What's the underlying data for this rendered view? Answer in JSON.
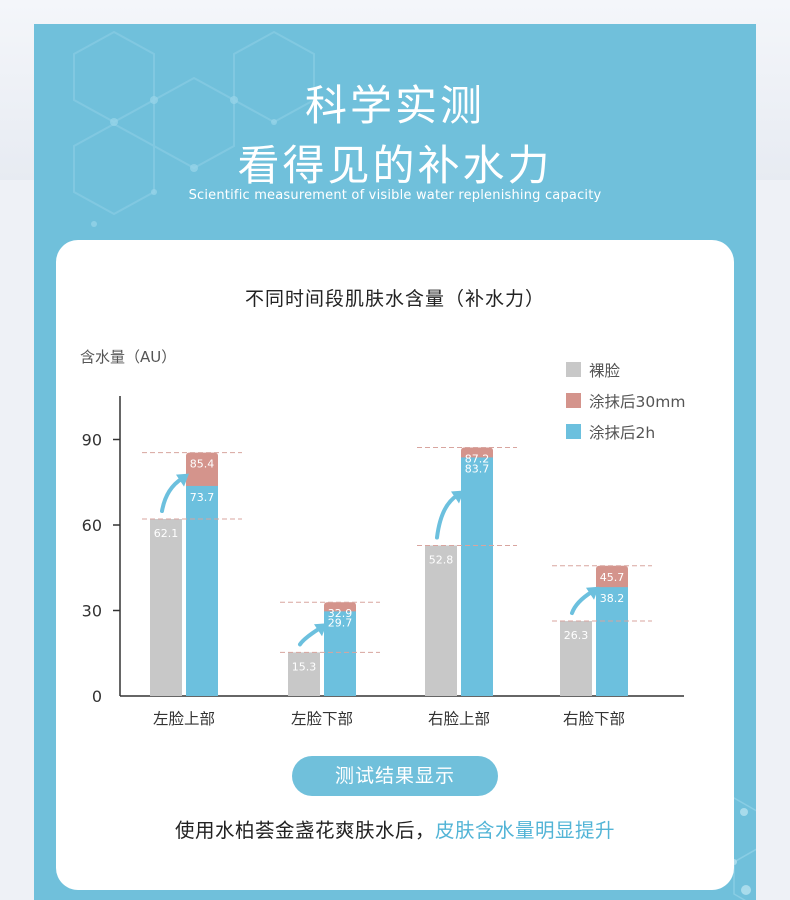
{
  "header": {
    "title_line1": "科学实测",
    "title_line2": "看得见的补水力",
    "subtitle": "Scientific measurement of visible water replenishing capacity"
  },
  "card": {
    "title": "不同时间段肌肤水含量（补水力）",
    "result_badge": "测试结果显示",
    "conclusion_prefix": "使用水柏荟金盏花爽肤水后，",
    "conclusion_highlight": "皮肤含水量明显提升"
  },
  "colors": {
    "panel": "#70c0db",
    "bare": "#c8c8c8",
    "after_30m": "#d4948c",
    "after_2h": "#6cc0de",
    "highlight": "#52b4d6"
  },
  "chart_data": {
    "type": "bar",
    "ylabel": "含水量（AU）",
    "xlabel": "",
    "ylim": [
      0,
      105
    ],
    "yticks": [
      "0",
      "30",
      "60",
      "90"
    ],
    "grid": false,
    "legend_position": "top-right",
    "categories": [
      "左脸上部",
      "左脸下部",
      "右脸上部",
      "右脸下部"
    ],
    "series": [
      {
        "name": "裸脸",
        "values": [
          62.1,
          15.3,
          52.8,
          26.3
        ],
        "labels": [
          "62.1",
          "15.3",
          "52.8",
          "26.3"
        ]
      },
      {
        "name": "涂抹后30mm",
        "values": [
          85.4,
          32.9,
          87.2,
          45.7
        ],
        "labels": [
          "85.4",
          "32.9",
          "87.2",
          "45.7"
        ]
      },
      {
        "name": "涂抹后2h",
        "values": [
          73.7,
          29.7,
          83.7,
          38.2
        ],
        "labels": [
          "73.7",
          "29.7",
          "83.7",
          "38.2"
        ]
      }
    ]
  }
}
